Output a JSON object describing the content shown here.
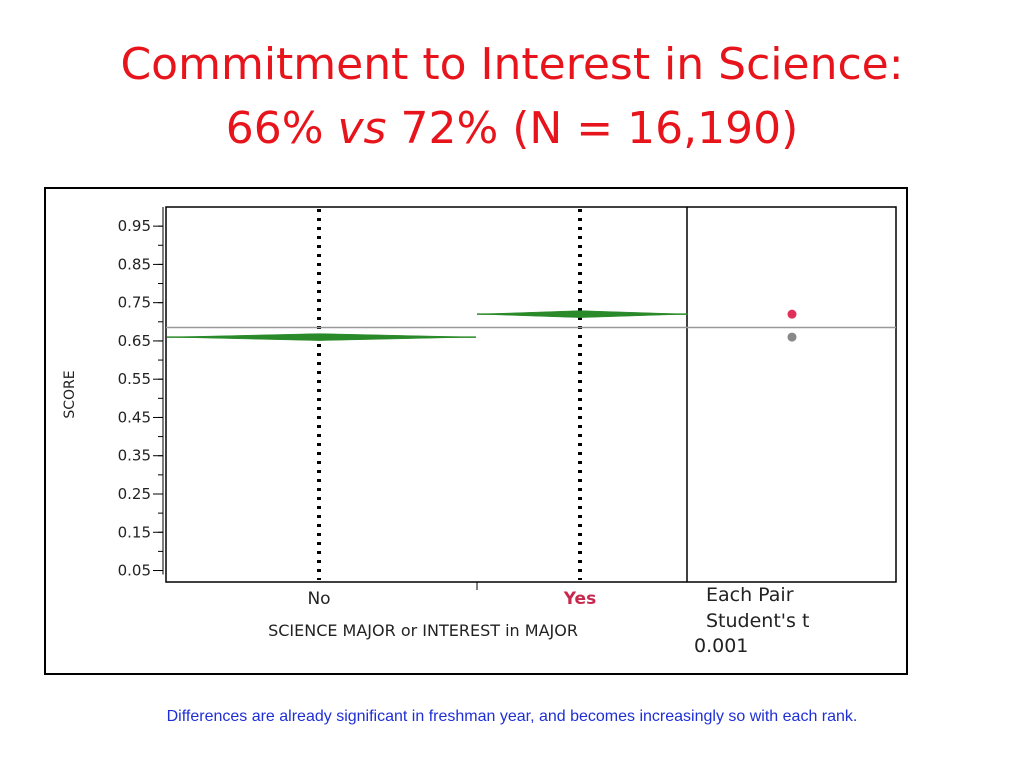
{
  "slide": {
    "title_line1": "Commitment to Interest in Science:",
    "title_line2_a": "66% ",
    "title_line2_vs": "vs",
    "title_line2_b": " 72% (N = 16,190)",
    "caption": "Differences are already significant in freshman year, and becomes increasingly so with each rank."
  },
  "colors": {
    "title": "#e8141b",
    "caption": "#1f2fd6",
    "diamond": "#2a8a2a",
    "yes_label": "#c8284d",
    "grand_mean": "#999999",
    "dot_yes": "#e0305a",
    "dot_no": "#888888"
  },
  "chart_data": {
    "type": "scatter",
    "title": "",
    "xlabel": "SCIENCE MAJOR or INTEREST in MAJOR",
    "ylabel": "SCORE",
    "categories": [
      "No",
      "Yes"
    ],
    "ylim": [
      0.02,
      1.0
    ],
    "yticks": [
      "0.05",
      "0.15",
      "0.25",
      "0.35",
      "0.45",
      "0.55",
      "0.65",
      "0.75",
      "0.85",
      "0.95"
    ],
    "series": [
      {
        "values": [
          0.66,
          0.72
        ]
      }
    ],
    "grand_mean": 0.685,
    "comparison_panel": {
      "label_line1": "Each Pair",
      "label_line2": "Student's t",
      "alpha": "0.001",
      "circles": [
        {
          "group": "Yes",
          "value": 0.72
        },
        {
          "group": "No",
          "value": 0.66
        }
      ]
    },
    "grid": false,
    "legend": "none"
  }
}
